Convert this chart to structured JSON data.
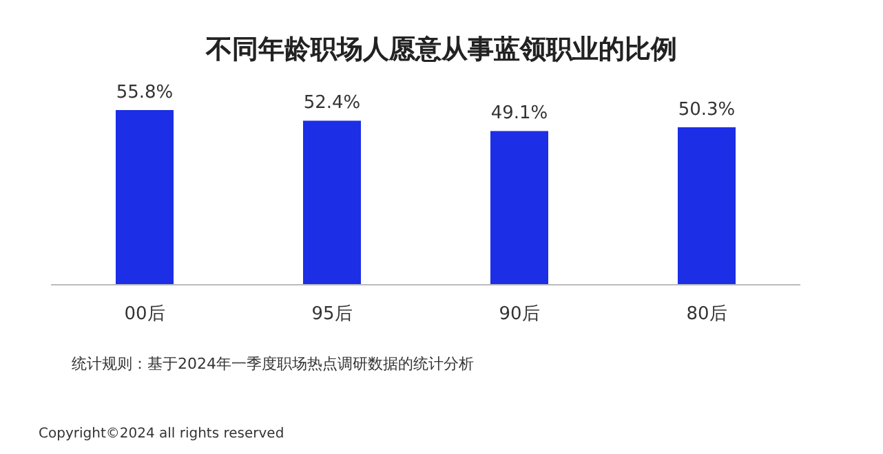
{
  "chart_data": {
    "type": "bar",
    "title": "不同年龄职场人愿意从事蓝领职业的比例",
    "categories": [
      "00后",
      "95后",
      "90后",
      "80后"
    ],
    "values": [
      55.8,
      52.4,
      49.1,
      50.3
    ],
    "value_labels": [
      "55.8%",
      "52.4%",
      "49.1%",
      "50.3%"
    ],
    "color": "#1c2ee6",
    "tick_labels": "x",
    "annotations": [
      "统计规则：基于2024年一季度职场热点调研数据的统计分析",
      "Copyright©2024 all rights reserved"
    ]
  }
}
